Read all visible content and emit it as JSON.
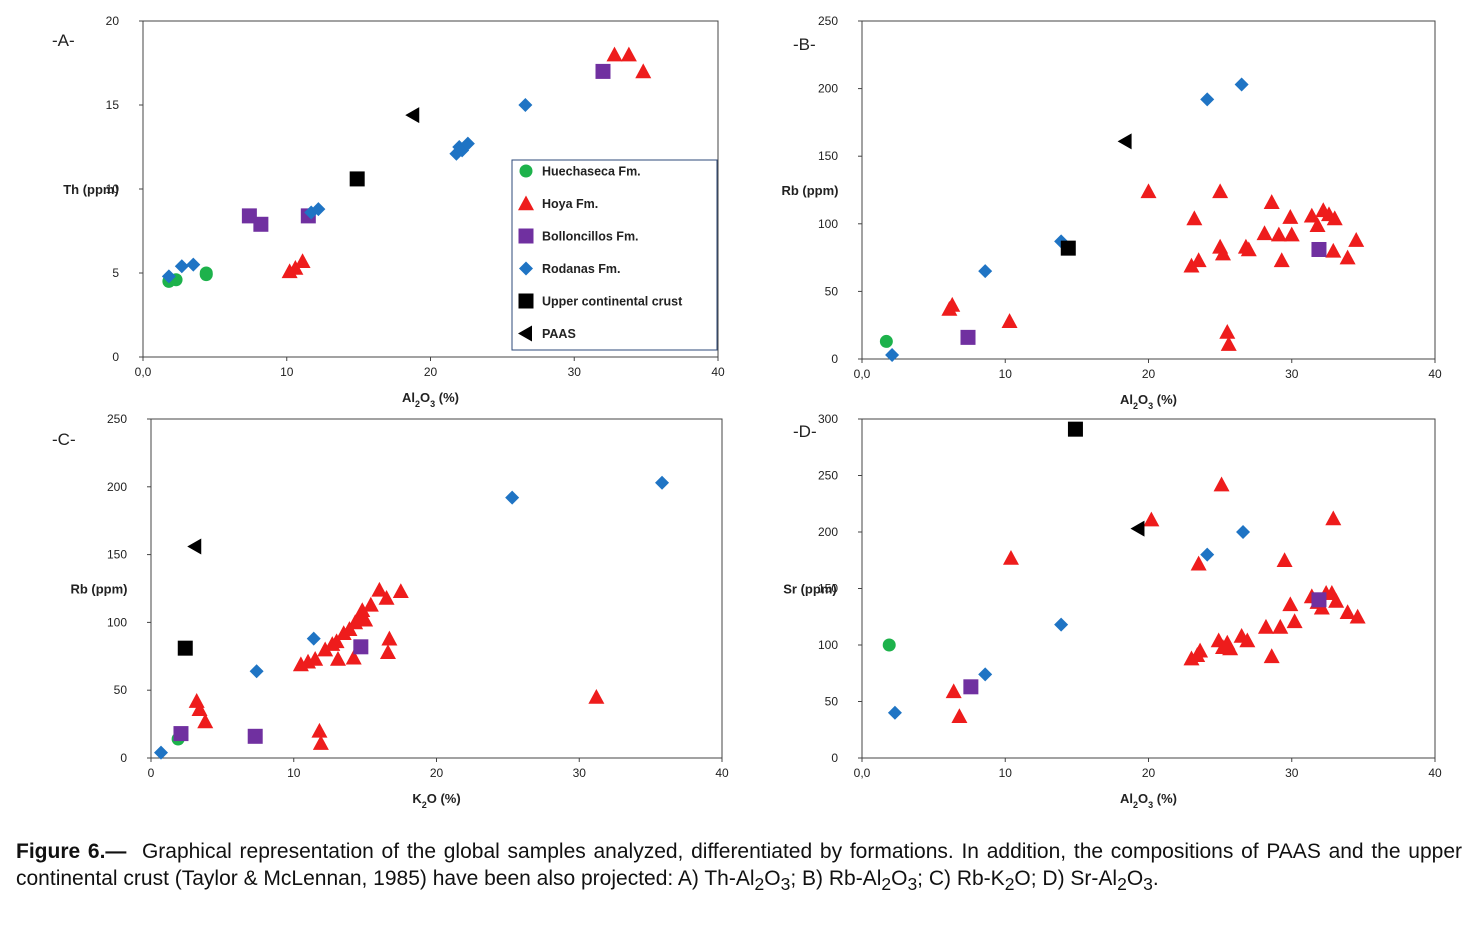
{
  "colors": {
    "Huechaseca Fm.": "#1db24b",
    "Hoya Fm.": "#ee1c1c",
    "Bolloncillos Fm.": "#7030a0",
    "Rodanas Fm.": "#1f74c4",
    "Upper continental crust": "#000000",
    "PAAS": "#000000"
  },
  "markers": {
    "Huechaseca Fm.": "circle",
    "Hoya Fm.": "triangle-up",
    "Bolloncillos Fm.": "square",
    "Rodanas Fm.": "diamond",
    "Upper continental crust": "square",
    "PAAS": "triangle-left"
  },
  "legend": {
    "items": [
      "Huechaseca Fm.",
      "Hoya Fm.",
      "Bolloncillos Fm.",
      "Rodanas Fm.",
      "Upper continental crust",
      "PAAS"
    ]
  },
  "chart_data": [
    {
      "type": "scatter",
      "panel_label": "-A-",
      "xlabel": "Al2O3 (%)",
      "ylabel": "Th (ppm)",
      "xlim": [
        0,
        40
      ],
      "ylim": [
        0,
        20
      ],
      "xticks": [
        "0,0",
        "10",
        "20",
        "30",
        "40"
      ],
      "yticks": [
        "0",
        "5",
        "10",
        "15",
        "20"
      ],
      "legend_position": "right",
      "series": [
        {
          "name": "Huechaseca Fm.",
          "points": [
            [
              1.8,
              4.5
            ],
            [
              2.3,
              4.6
            ],
            [
              4.4,
              5.0
            ],
            [
              4.4,
              4.9
            ]
          ]
        },
        {
          "name": "Hoya Fm.",
          "points": [
            [
              10.2,
              5.1
            ],
            [
              10.6,
              5.3
            ],
            [
              11.1,
              5.7
            ],
            [
              32.8,
              18.0
            ],
            [
              33.8,
              18.0
            ],
            [
              34.8,
              17.0
            ]
          ]
        },
        {
          "name": "Bolloncillos Fm.",
          "points": [
            [
              7.4,
              8.4
            ],
            [
              8.2,
              7.9
            ],
            [
              11.5,
              8.4
            ],
            [
              32.0,
              17.0
            ]
          ]
        },
        {
          "name": "Rodanas Fm.",
          "points": [
            [
              1.8,
              4.8
            ],
            [
              2.7,
              5.4
            ],
            [
              3.5,
              5.5
            ],
            [
              11.7,
              8.6
            ],
            [
              12.2,
              8.8
            ],
            [
              21.8,
              12.1
            ],
            [
              22.2,
              12.3
            ],
            [
              22.0,
              12.5
            ],
            [
              22.6,
              12.7
            ],
            [
              26.6,
              15.0
            ]
          ]
        },
        {
          "name": "Upper continental crust",
          "points": [
            [
              14.9,
              10.6
            ]
          ]
        },
        {
          "name": "PAAS",
          "points": [
            [
              18.8,
              14.4
            ]
          ]
        }
      ]
    },
    {
      "type": "scatter",
      "panel_label": "-B-",
      "xlabel": "Al2O3 (%)",
      "ylabel": "Rb (ppm)",
      "xlim": [
        0,
        40
      ],
      "ylim": [
        0,
        250
      ],
      "xticks": [
        "0,0",
        "10",
        "20",
        "30",
        "40"
      ],
      "yticks": [
        "0",
        "50",
        "100",
        "150",
        "200",
        "250"
      ],
      "series": [
        {
          "name": "Huechaseca Fm.",
          "points": [
            [
              1.7,
              13
            ]
          ]
        },
        {
          "name": "Hoya Fm.",
          "points": [
            [
              6.1,
              37
            ],
            [
              6.3,
              40
            ],
            [
              10.3,
              28
            ],
            [
              20.0,
              124
            ],
            [
              23.0,
              69
            ],
            [
              23.2,
              104
            ],
            [
              23.5,
              73
            ],
            [
              25.0,
              124
            ],
            [
              25.0,
              83
            ],
            [
              25.2,
              78
            ],
            [
              25.5,
              20
            ],
            [
              25.6,
              11
            ],
            [
              26.8,
              83
            ],
            [
              27.0,
              81
            ],
            [
              28.1,
              93
            ],
            [
              28.6,
              116
            ],
            [
              29.1,
              92
            ],
            [
              29.3,
              73
            ],
            [
              29.9,
              105
            ],
            [
              30.0,
              92
            ],
            [
              31.4,
              106
            ],
            [
              31.8,
              99
            ],
            [
              32.2,
              110
            ],
            [
              32.6,
              107
            ],
            [
              33.0,
              104
            ],
            [
              32.9,
              80
            ],
            [
              33.9,
              75
            ],
            [
              34.5,
              88
            ]
          ]
        },
        {
          "name": "Bolloncillos Fm.",
          "points": [
            [
              7.4,
              16
            ],
            [
              31.9,
              81
            ]
          ]
        },
        {
          "name": "Rodanas Fm.",
          "points": [
            [
              2.1,
              3
            ],
            [
              8.6,
              65
            ],
            [
              13.9,
              87
            ],
            [
              24.1,
              192
            ],
            [
              26.5,
              203
            ]
          ]
        },
        {
          "name": "Upper continental crust",
          "points": [
            [
              14.4,
              82
            ]
          ]
        },
        {
          "name": "PAAS",
          "points": [
            [
              18.4,
              161
            ]
          ]
        }
      ]
    },
    {
      "type": "scatter",
      "panel_label": "-C-",
      "xlabel": "K2O (%)",
      "ylabel": "Rb (ppm)",
      "xlim": [
        0,
        40
      ],
      "ylim": [
        0,
        250
      ],
      "xticks": [
        "0",
        "10",
        "20",
        "30",
        "40"
      ],
      "yticks": [
        "0",
        "50",
        "100",
        "150",
        "200",
        "250"
      ],
      "series": [
        {
          "name": "Huechaseca Fm.",
          "points": [
            [
              1.9,
              14
            ]
          ]
        },
        {
          "name": "Hoya Fm.",
          "points": [
            [
              3.2,
              42
            ],
            [
              3.4,
              36
            ],
            [
              3.8,
              27
            ],
            [
              10.5,
              69
            ],
            [
              11.0,
              71
            ],
            [
              11.5,
              73
            ],
            [
              11.8,
              20
            ],
            [
              11.9,
              11
            ],
            [
              12.2,
              80
            ],
            [
              12.7,
              84
            ],
            [
              13.0,
              86
            ],
            [
              13.1,
              73
            ],
            [
              13.5,
              92
            ],
            [
              13.9,
              95
            ],
            [
              14.2,
              74
            ],
            [
              14.3,
              100
            ],
            [
              14.6,
              104
            ],
            [
              14.8,
              109
            ],
            [
              15.0,
              102
            ],
            [
              15.4,
              113
            ],
            [
              16.0,
              124
            ],
            [
              16.5,
              118
            ],
            [
              16.7,
              88
            ],
            [
              16.6,
              78
            ],
            [
              17.5,
              123
            ],
            [
              31.2,
              45
            ]
          ]
        },
        {
          "name": "Bolloncillos Fm.",
          "points": [
            [
              2.1,
              18
            ],
            [
              7.3,
              16
            ],
            [
              14.7,
              82
            ]
          ]
        },
        {
          "name": "Rodanas Fm.",
          "points": [
            [
              0.7,
              4
            ],
            [
              7.4,
              64
            ],
            [
              11.4,
              88
            ],
            [
              25.3,
              192
            ],
            [
              35.8,
              203
            ]
          ]
        },
        {
          "name": "Upper continental crust",
          "points": [
            [
              2.4,
              81
            ]
          ]
        },
        {
          "name": "PAAS",
          "points": [
            [
              3.1,
              156
            ]
          ]
        }
      ]
    },
    {
      "type": "scatter",
      "panel_label": "-D-",
      "xlabel": "Al2O3 (%)",
      "ylabel": "Sr (ppm)",
      "xlim": [
        0,
        40
      ],
      "ylim": [
        0,
        300
      ],
      "xticks": [
        "0,0",
        "10",
        "20",
        "30",
        "40"
      ],
      "yticks": [
        "0",
        "50",
        "100",
        "150",
        "200",
        "250",
        "300"
      ],
      "series": [
        {
          "name": "Huechaseca Fm.",
          "points": [
            [
              1.9,
              100
            ]
          ]
        },
        {
          "name": "Hoya Fm.",
          "points": [
            [
              6.4,
              59
            ],
            [
              6.8,
              37
            ],
            [
              10.4,
              177
            ],
            [
              20.2,
              211
            ],
            [
              23.0,
              88
            ],
            [
              23.4,
              91
            ],
            [
              23.5,
              172
            ],
            [
              23.6,
              95
            ],
            [
              24.9,
              104
            ],
            [
              25.1,
              242
            ],
            [
              25.2,
              98
            ],
            [
              25.5,
              102
            ],
            [
              25.7,
              97
            ],
            [
              26.5,
              108
            ],
            [
              26.9,
              104
            ],
            [
              28.2,
              116
            ],
            [
              28.6,
              90
            ],
            [
              29.2,
              116
            ],
            [
              29.5,
              175
            ],
            [
              29.9,
              136
            ],
            [
              30.2,
              121
            ],
            [
              31.4,
              143
            ],
            [
              31.8,
              138
            ],
            [
              32.1,
              133
            ],
            [
              32.4,
              146
            ],
            [
              32.9,
              212
            ],
            [
              32.8,
              146
            ],
            [
              33.1,
              139
            ],
            [
              33.9,
              129
            ],
            [
              34.6,
              125
            ]
          ]
        },
        {
          "name": "Bolloncillos Fm.",
          "points": [
            [
              7.6,
              63
            ],
            [
              31.9,
              140
            ]
          ]
        },
        {
          "name": "Rodanas Fm.",
          "points": [
            [
              2.3,
              40
            ],
            [
              8.6,
              74
            ],
            [
              13.9,
              118
            ],
            [
              24.1,
              180
            ],
            [
              26.6,
              200
            ]
          ]
        },
        {
          "name": "Upper continental crust",
          "points": [
            [
              14.9,
              291
            ]
          ]
        },
        {
          "name": "PAAS",
          "points": [
            [
              19.3,
              203
            ]
          ]
        }
      ]
    }
  ],
  "caption": {
    "label": "Figure 6.—",
    "text": "Graphical representation of the global samples analyzed, differentiated by formations. In addition, the compositions of PAAS and the upper continental crust (Taylor & McLennan, 1985) have been also projected: A) Th-Al",
    "sub1": "2",
    "t1": "O",
    "sub2": "3",
    "t2": "; B) Rb-Al",
    "sub3": "2",
    "t3": "O",
    "sub4": "3",
    "t4": "; C) Rb-K",
    "sub5": "2",
    "t5": "O; D) Sr-Al",
    "sub6": "2",
    "t6": "O",
    "sub7": "3",
    "t7": "."
  }
}
